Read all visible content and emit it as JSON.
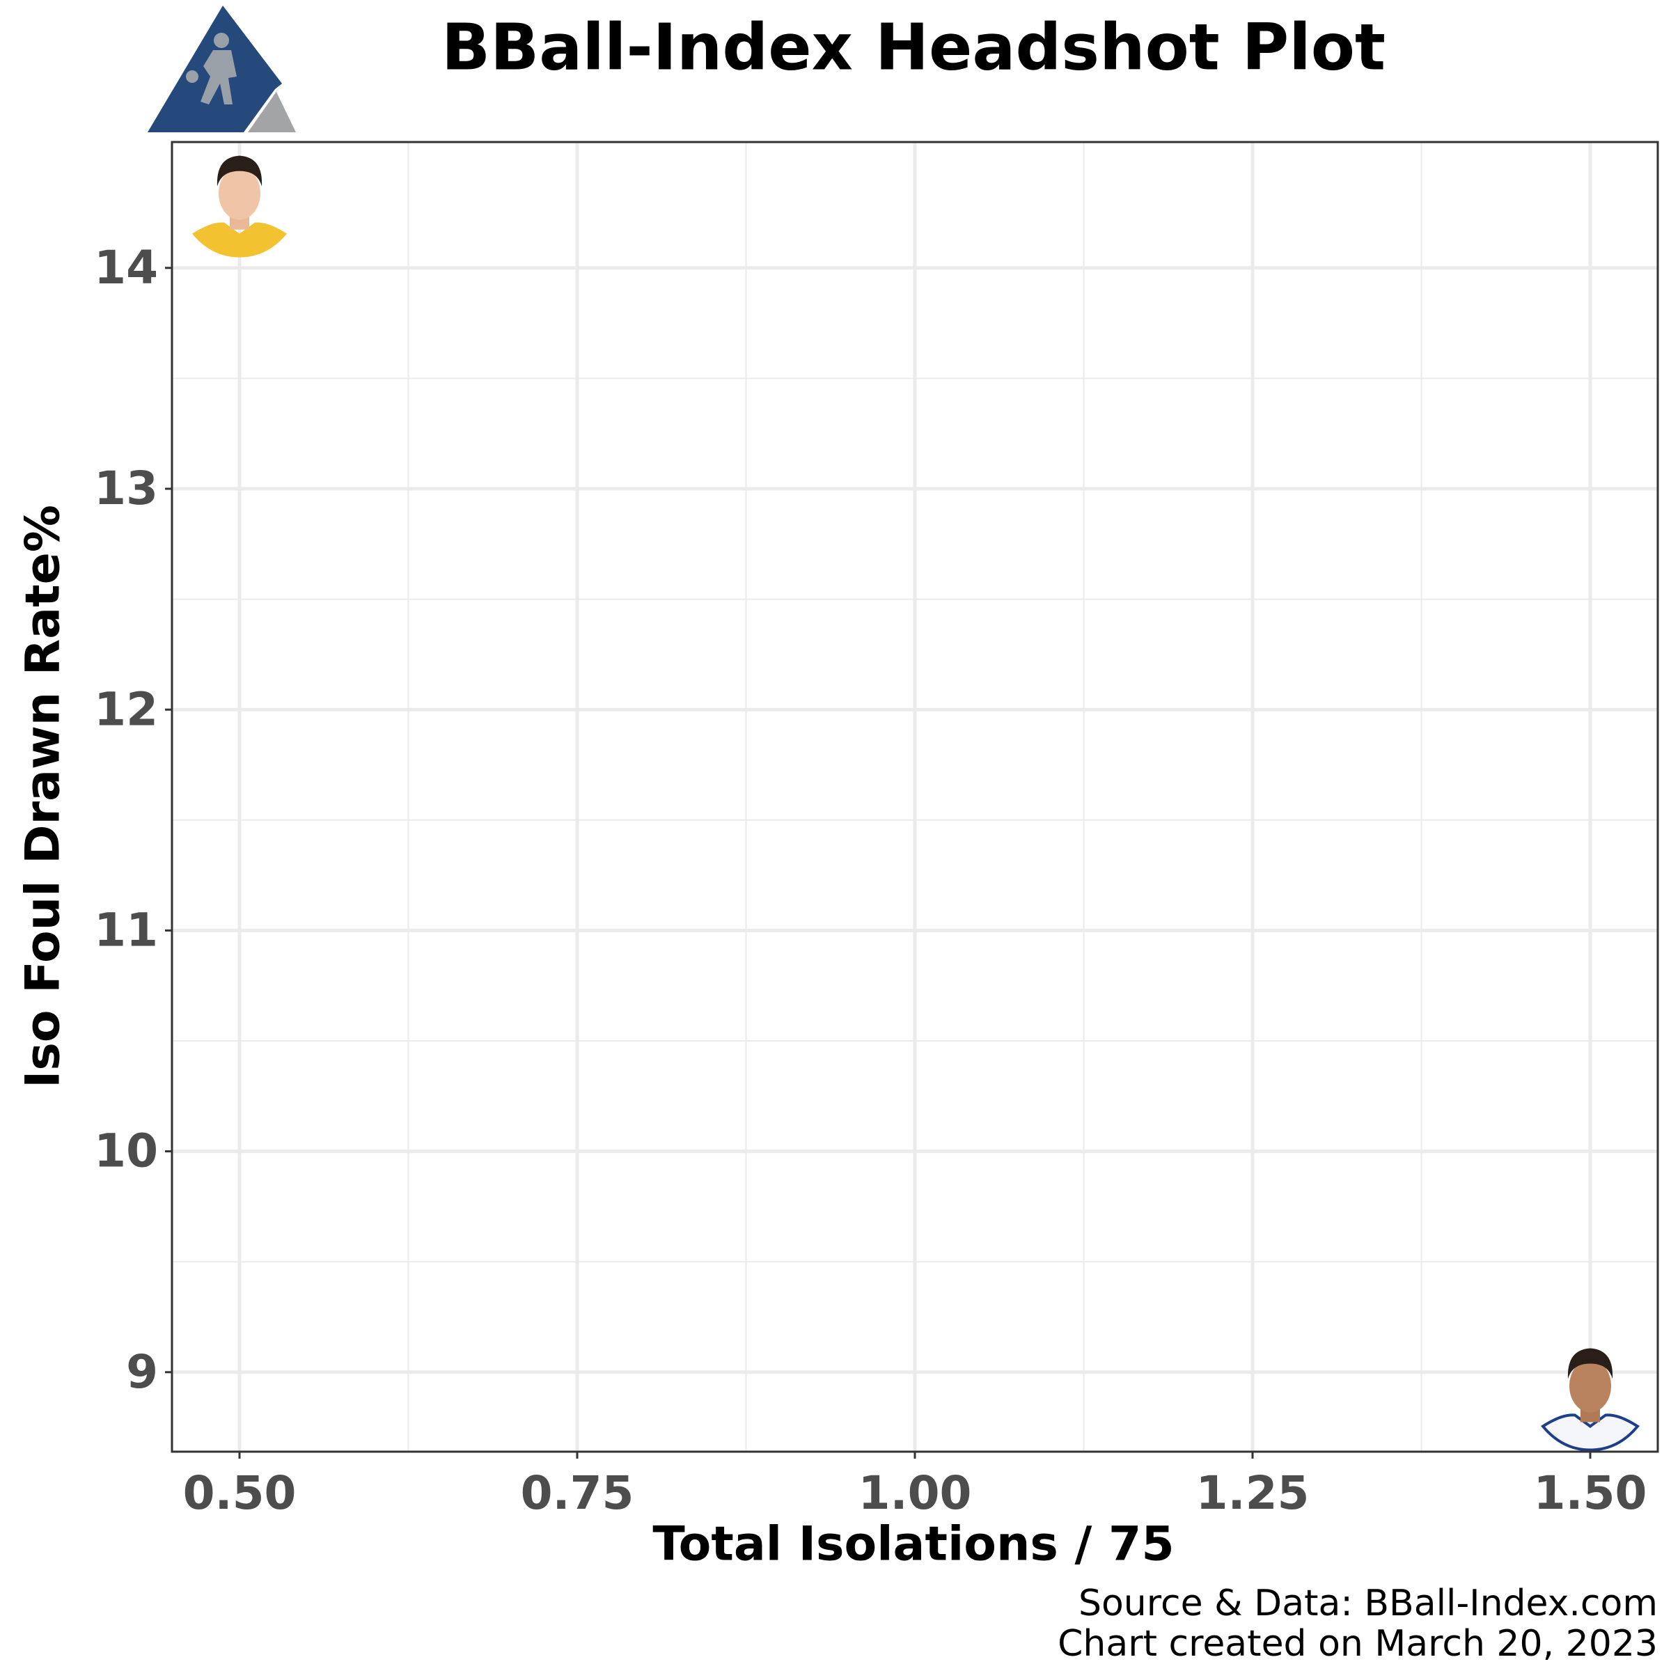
{
  "chart_data": {
    "type": "scatter",
    "title": "BBall-Index Headshot Plot",
    "xlabel": "Total Isolations / 75",
    "ylabel": "Iso Foul Drawn Rate%",
    "source": "Source & Data: BBall-Index.com",
    "created": "Chart created on March 20, 2023",
    "x": [
      0.5,
      1.5
    ],
    "values": [
      14.3,
      8.9
    ],
    "jersey_colors": [
      "#f2c230",
      "#f4f6fa"
    ],
    "xlim": [
      0.45,
      1.55
    ],
    "ylim": [
      8.64,
      14.57
    ],
    "xticks": [
      {
        "value": 0.5,
        "label": "0.50"
      },
      {
        "value": 0.75,
        "label": "0.75"
      },
      {
        "value": 1.0,
        "label": "1.00"
      },
      {
        "value": 1.25,
        "label": "1.25"
      },
      {
        "value": 1.5,
        "label": "1.50"
      }
    ],
    "yticks": [
      9,
      10,
      11,
      12,
      13,
      14
    ],
    "grid": true
  }
}
